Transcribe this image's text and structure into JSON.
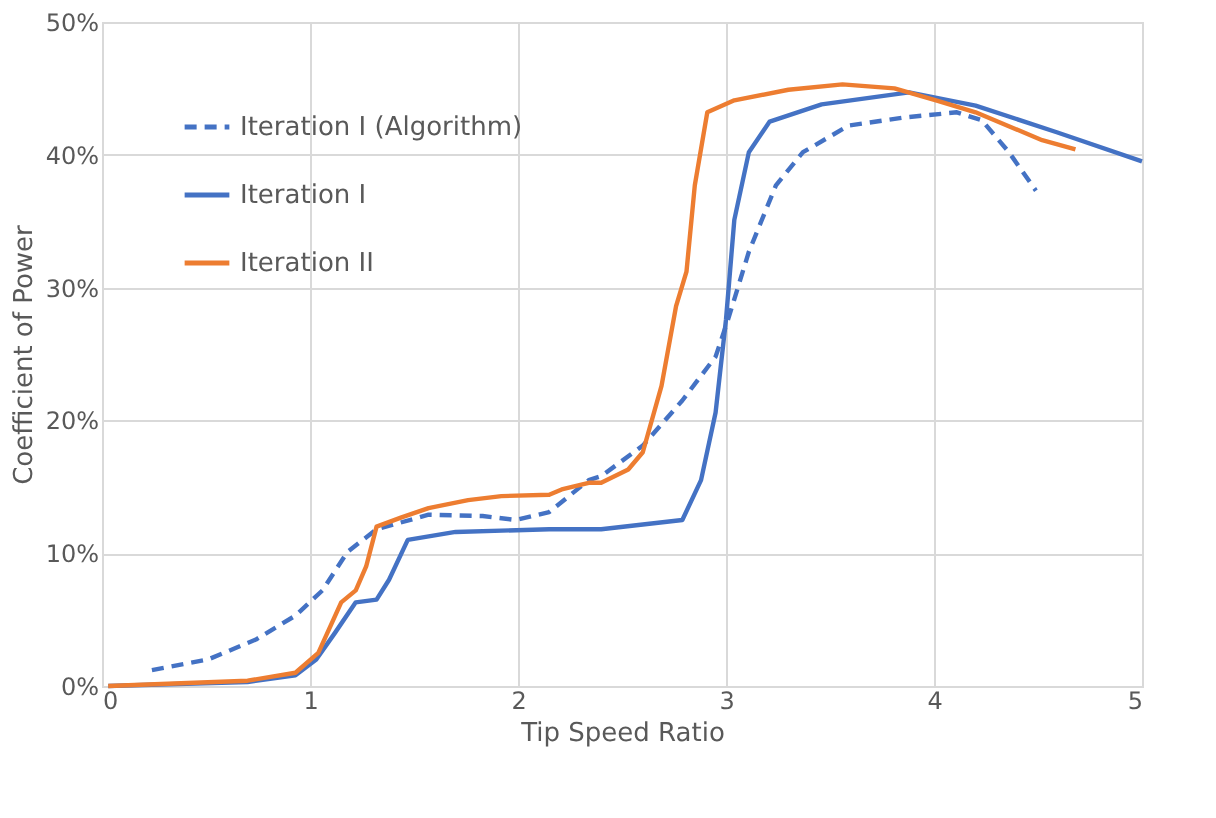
{
  "chart_data": {
    "type": "line",
    "xlabel": "Tip Speed Ratio",
    "ylabel": "Coefficient of Power",
    "xlim": [
      0,
      5
    ],
    "xticks": [
      0,
      1,
      2,
      3,
      4,
      5
    ],
    "ylim": [
      0,
      50
    ],
    "yticks": [
      {
        "value": 0,
        "label": "0%"
      },
      {
        "value": 10,
        "label": "10%"
      },
      {
        "value": 20,
        "label": "20%"
      },
      {
        "value": 30,
        "label": "30%"
      },
      {
        "value": 40,
        "label": "40%"
      },
      {
        "value": 50,
        "label": "50%"
      }
    ],
    "grid": true,
    "legend": "top left",
    "marker": "none",
    "series": [
      {
        "name": "Iteration I (Algorithm)",
        "color": "#4472c4",
        "line_style": "dashed",
        "x": [
          0.24,
          0.51,
          0.74,
          0.93,
          1.06,
          1.18,
          1.32,
          1.57,
          1.83,
          1.99,
          2.15,
          2.34,
          2.4,
          2.6,
          2.79,
          2.95,
          3.01,
          3.11,
          3.24,
          3.37,
          3.59,
          3.85,
          4.11,
          4.23,
          4.36,
          4.49
        ],
        "values": [
          1.2,
          2.0,
          3.5,
          5.3,
          7.2,
          10.1,
          11.8,
          12.9,
          12.8,
          12.5,
          13.1,
          15.5,
          15.8,
          18.1,
          21.5,
          24.8,
          27.6,
          32.7,
          37.7,
          40.2,
          42.2,
          42.8,
          43.2,
          42.6,
          40.2,
          37.3
        ]
      },
      {
        "name": "Iteration I",
        "color": "#4472c4",
        "line_style": "solid",
        "x": [
          0.03,
          0.7,
          0.93,
          1.03,
          1.12,
          1.22,
          1.32,
          1.38,
          1.47,
          1.7,
          2.15,
          2.4,
          2.79,
          2.88,
          2.95,
          3.0,
          3.04,
          3.11,
          3.21,
          3.46,
          3.88,
          4.2,
          4.59,
          5.0
        ],
        "values": [
          0,
          0.3,
          0.8,
          2.0,
          4.0,
          6.3,
          6.5,
          8.0,
          11.0,
          11.6,
          11.8,
          11.8,
          12.5,
          15.5,
          20.6,
          27.6,
          35.1,
          40.2,
          42.5,
          43.8,
          44.7,
          43.7,
          41.7,
          39.5
        ]
      },
      {
        "name": "Iteration II",
        "color": "#ed7d31",
        "line_style": "solid",
        "x": [
          0.03,
          0.7,
          0.93,
          1.04,
          1.15,
          1.22,
          1.27,
          1.32,
          1.44,
          1.57,
          1.76,
          1.92,
          2.15,
          2.21,
          2.34,
          2.4,
          2.53,
          2.6,
          2.69,
          2.76,
          2.81,
          2.85,
          2.91,
          3.04,
          3.3,
          3.56,
          3.81,
          4.01,
          4.2,
          4.52,
          4.68
        ],
        "values": [
          0,
          0.4,
          1.0,
          2.5,
          6.3,
          7.2,
          9.0,
          12.0,
          12.7,
          13.4,
          14.0,
          14.3,
          14.4,
          14.8,
          15.3,
          15.3,
          16.3,
          17.6,
          22.6,
          28.6,
          31.2,
          37.7,
          43.2,
          44.1,
          44.9,
          45.3,
          45.0,
          44.1,
          43.2,
          41.1,
          40.4
        ]
      }
    ]
  }
}
